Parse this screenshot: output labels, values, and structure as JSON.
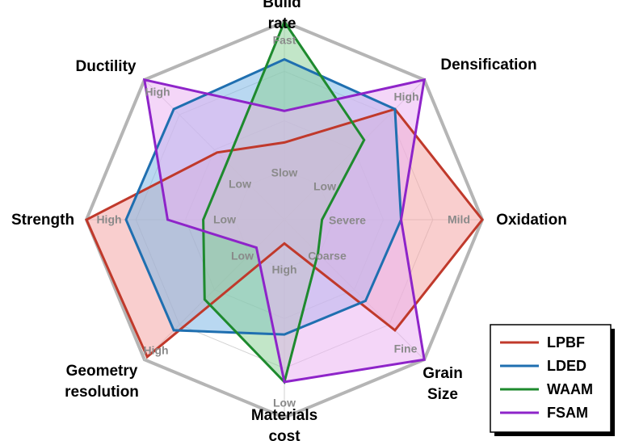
{
  "chart_data": {
    "type": "radar",
    "axes": [
      {
        "name": "Build rate",
        "high_label": "Fast",
        "low_label": "Slow"
      },
      {
        "name": "Densification",
        "high_label": "High",
        "low_label": "Low"
      },
      {
        "name": "Oxidation",
        "high_label": "Mild",
        "low_label": "Severe"
      },
      {
        "name": "Grain Size",
        "high_label": "Fine",
        "low_label": "Coarse"
      },
      {
        "name": "Materials cost",
        "high_label": "Low",
        "low_label": "High"
      },
      {
        "name": "Geometry resolution",
        "high_label": "High",
        "low_label": "Low"
      },
      {
        "name": "Strength",
        "high_label": "High",
        "low_label": "Low"
      },
      {
        "name": "Ductility",
        "high_label": "High",
        "low_label": "Low"
      }
    ],
    "rlim": [
      0,
      1
    ],
    "grid_levels": [
      0.25,
      0.5,
      0.75,
      1.0
    ],
    "legend_position": "bottom-right",
    "series": [
      {
        "name": "LPBF",
        "color": "#c0392b",
        "fill": "#f4a6a6",
        "values": [
          0.39,
          0.79,
          1.0,
          0.79,
          0.12,
          0.98,
          1.0,
          0.48
        ]
      },
      {
        "name": "LDED",
        "color": "#1f6fb0",
        "fill": "#7fb8e6",
        "values": [
          0.81,
          0.79,
          0.59,
          0.58,
          0.58,
          0.79,
          0.8,
          0.79
        ]
      },
      {
        "name": "WAAM",
        "color": "#1e8a2e",
        "fill": "#8fd19a",
        "values": [
          1.0,
          0.57,
          0.19,
          0.24,
          0.82,
          0.57,
          0.41,
          0.41
        ]
      },
      {
        "name": "FSAM",
        "color": "#8e24c9",
        "fill": "#ebb4f2",
        "values": [
          0.55,
          1.0,
          0.59,
          1.0,
          0.82,
          0.2,
          0.59,
          1.0
        ]
      }
    ]
  }
}
